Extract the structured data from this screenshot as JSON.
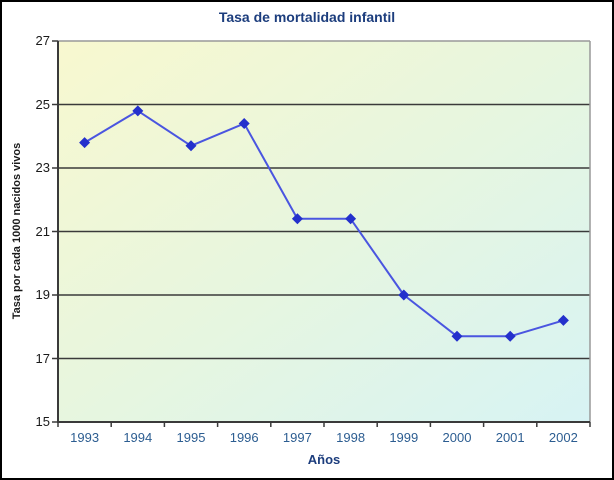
{
  "chart_data": {
    "type": "line",
    "title": "Tasa de mortalidad infantil",
    "xlabel": "Años",
    "ylabel": "Tasa por cada 1000 nacidos vivos",
    "categories": [
      "1993",
      "1994",
      "1995",
      "1996",
      "1997",
      "1998",
      "1999",
      "2000",
      "2001",
      "2002"
    ],
    "series": [
      {
        "name": "Tasa de mortalidad infantil",
        "values": [
          23.8,
          24.8,
          23.7,
          24.4,
          21.4,
          21.4,
          19.0,
          17.7,
          17.7,
          18.2
        ]
      }
    ],
    "ylim": [
      15,
      27
    ],
    "yticks": [
      15,
      17,
      19,
      21,
      23,
      25,
      27
    ],
    "grid": true,
    "legend_position": "none",
    "marker_shape": "diamond",
    "colors": {
      "line": "#4a55e0",
      "marker": "#2430cc",
      "title_text": "#1c3d7d",
      "axis_title_text": "#1c3d7d",
      "x_tick_text": "#2c5d91",
      "y_tick_text": "#1a1a1a",
      "grid_line": "#3a3a3a",
      "axis_line": "#3a3a3a",
      "plot_border": "#999999",
      "plot_bg_topleft": "#f8f8cf",
      "plot_bg_mid": "#e7f6df",
      "plot_bg_bottomright": "#d7f3f4",
      "page_bg": "#ffffff",
      "frame_border": "#000000"
    }
  }
}
